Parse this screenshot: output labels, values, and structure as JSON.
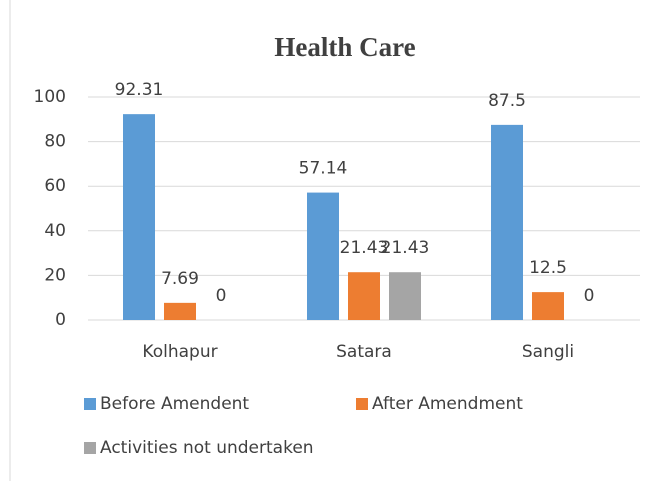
{
  "chart_data": {
    "type": "bar",
    "title": "Health Care",
    "categories": [
      "Kolhapur",
      "Satara",
      "Sangli"
    ],
    "series": [
      {
        "name": "Before Amendent",
        "color": "#5b9bd5",
        "values": [
          92.31,
          57.14,
          87.5
        ]
      },
      {
        "name": "After Amendment",
        "color": "#ed7d31",
        "values": [
          7.69,
          21.43,
          12.5
        ]
      },
      {
        "name": "Activities not undertaken",
        "color": "#a5a5a5",
        "values": [
          0,
          21.43,
          0
        ]
      }
    ],
    "ylim": [
      0,
      100
    ],
    "yticks": [
      0,
      20,
      40,
      60,
      80,
      100
    ],
    "grid": true
  }
}
